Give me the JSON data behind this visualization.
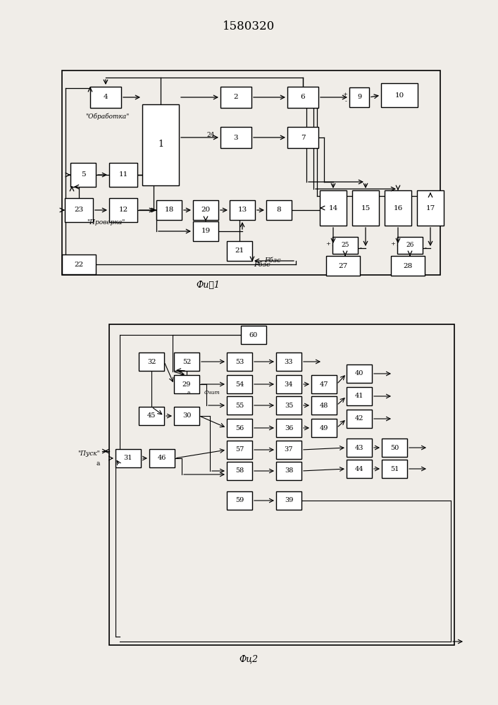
{
  "title": "1580320",
  "fig1_caption": "Фиѡ1",
  "fig2_caption": "Фц2",
  "bg": "#f0ede8",
  "lc": "#000000",
  "bc": "#ffffff"
}
